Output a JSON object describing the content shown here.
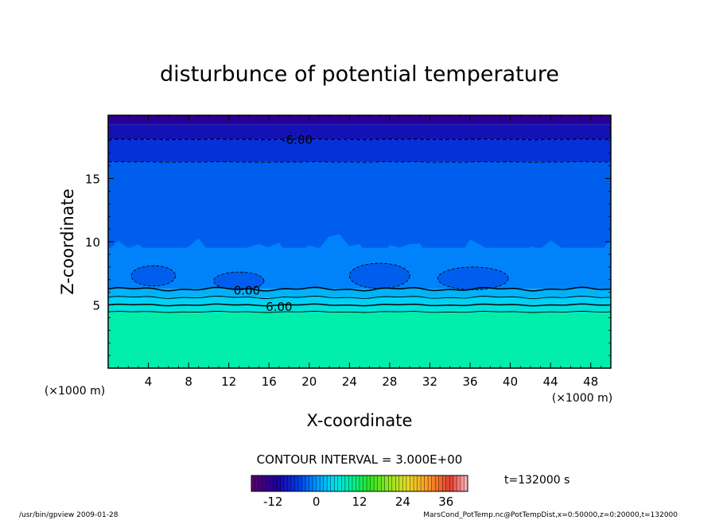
{
  "chart_data": {
    "type": "heatmap",
    "title": "disturbunce of potential temperature",
    "xlabel": "X-coordinate",
    "ylabel": "Z-coordinate",
    "x_unit": "(×1000 m)",
    "y_unit": "(×1000 m)",
    "xlim": [
      0,
      50
    ],
    "ylim": [
      0,
      20
    ],
    "x_ticks": [
      4,
      8,
      12,
      16,
      20,
      24,
      28,
      32,
      36,
      40,
      44,
      48
    ],
    "y_ticks": [
      5,
      10,
      15
    ],
    "contour_interval_text": "CONTOUR INTERVAL = 3.000E+00",
    "contour_labels": [
      {
        "text": "-6.00",
        "x": 18.8,
        "z": 18.1
      },
      {
        "text": "0.00",
        "x": 13.8,
        "z": 6.2
      },
      {
        "text": "6.00",
        "x": 17.0,
        "z": 4.9
      }
    ],
    "colorbar": {
      "ticks": [
        -12,
        0,
        12,
        24,
        36
      ],
      "range": [
        -18,
        42
      ]
    },
    "time_label": "t=132000 s",
    "footer_left": "/usr/bin/gpview  2009-01-28",
    "footer_right": "MarsCond_PotTemp.nc@PotTempDist,x=0:50000,z=0:20000,t=132000",
    "fill_levels": [
      {
        "z_from": 0,
        "z_to": 4.4,
        "value": 9
      },
      {
        "z_from": 4.4,
        "z_to": 5.0,
        "value": 6
      },
      {
        "z_from": 5.0,
        "z_to": 5.6,
        "value": 4
      },
      {
        "z_from": 5.6,
        "z_to": 6.3,
        "value": 2
      },
      {
        "z_from": 6.3,
        "z_to": 9.5,
        "value": -1
      },
      {
        "z_from": 9.5,
        "z_to": 16.3,
        "value": -3
      },
      {
        "z_from": 16.3,
        "z_to": 18.1,
        "value": -6
      },
      {
        "z_from": 18.1,
        "z_to": 19.3,
        "value": -9
      },
      {
        "z_from": 19.3,
        "z_to": 20,
        "value": -12
      }
    ]
  }
}
